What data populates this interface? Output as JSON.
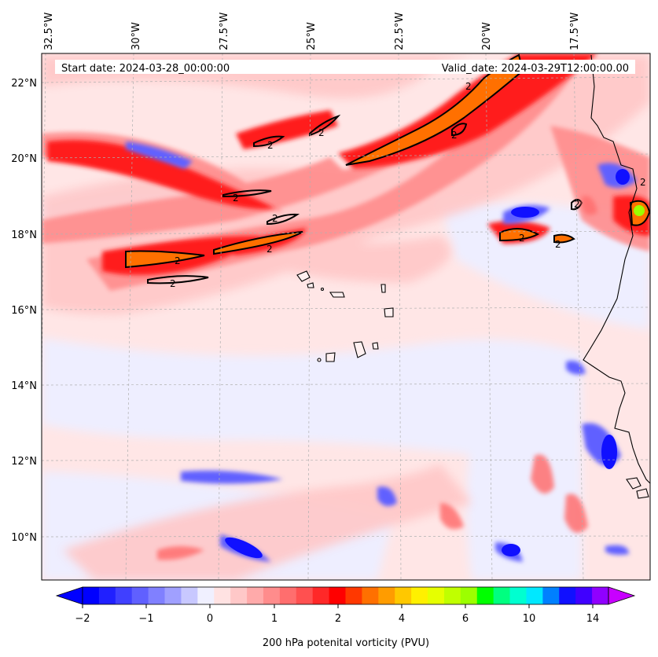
{
  "header": {
    "start_label": "Start date: 2024-03-28_00:00:00",
    "valid_label": "Valid_date: 2024-03-29T12:00:00.00"
  },
  "map": {
    "lon_labels": [
      "32.5°W",
      "30°W",
      "27.5°W",
      "25°W",
      "22.5°W",
      "20°W",
      "17.5°W"
    ],
    "lat_labels": [
      "22°N",
      "20°N",
      "18°N",
      "16°N",
      "14°N",
      "12°N",
      "10°N"
    ],
    "contour_level_label": "2",
    "colors": {
      "strong_negative": "#0000ff",
      "weak_negative": "#f0f0ff",
      "weak_positive": "#ffe2e2",
      "strong_positive": "#ff0000",
      "orange": "#ff7000",
      "green": "#9cff00"
    }
  },
  "colorbar": {
    "tick_labels": [
      "−2",
      "−1",
      "0",
      "1",
      "2",
      "4",
      "6",
      "10",
      "14"
    ],
    "title": "200 hPa potenital vorticity (PVU)",
    "colors": [
      "#0000ff",
      "#2020ff",
      "#4040ff",
      "#6060ff",
      "#8080ff",
      "#a0a0ff",
      "#c8c8ff",
      "#f0f0ff",
      "#ffe2e2",
      "#ffc8c8",
      "#ffaaaa",
      "#ff8c8c",
      "#ff6e6e",
      "#ff5050",
      "#ff2828",
      "#ff0000",
      "#ff3800",
      "#ff7000",
      "#ff9c00",
      "#ffc800",
      "#fff000",
      "#e6ff00",
      "#c0ff00",
      "#9cff00",
      "#00ff00",
      "#00ff80",
      "#00ffd0",
      "#00e8ff",
      "#0080ff",
      "#1010ff",
      "#4000ff",
      "#9000ff"
    ]
  }
}
